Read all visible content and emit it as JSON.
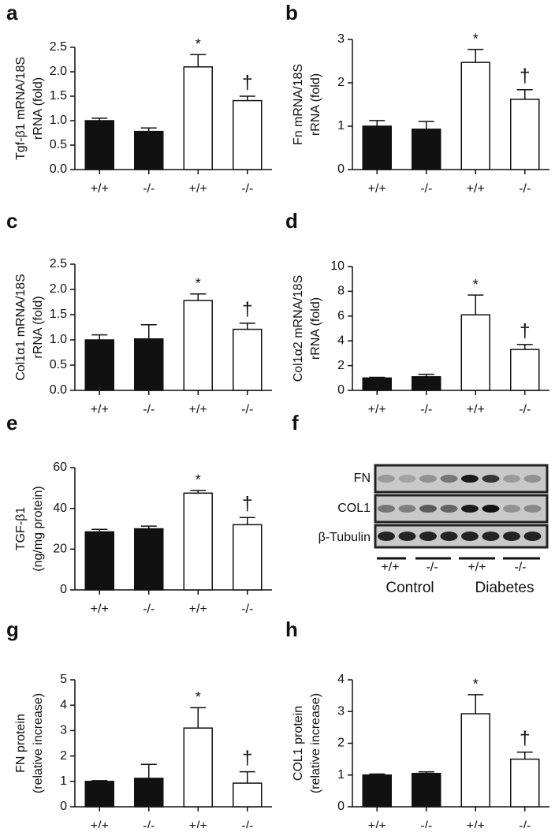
{
  "chart_data": [
    {
      "type": "bar",
      "panel": "a",
      "ylabel": [
        "Tgf-β1 mRNA/18S",
        "rRNA (fold)"
      ],
      "categories": [
        "+/+",
        "-/-",
        "+/+",
        "-/-"
      ],
      "values": [
        1.0,
        0.78,
        2.1,
        1.41
      ],
      "errors": [
        0.05,
        0.07,
        0.25,
        0.09
      ],
      "colors": [
        "#111111",
        "#111111",
        "#ffffff",
        "#ffffff"
      ],
      "bar_labels": [
        null,
        null,
        "*",
        "†"
      ],
      "ylim": [
        0,
        2.5
      ],
      "yticks": [
        {
          "value": 0,
          "label": "0.0"
        },
        0.5,
        {
          "value": 1,
          "label": "1.0"
        },
        1.5,
        {
          "value": 2,
          "label": "2.0"
        },
        2.5
      ]
    },
    {
      "type": "bar",
      "panel": "b",
      "ylabel": [
        "Fn mRNA/18S",
        "rRNA (fold)"
      ],
      "categories": [
        "+/+",
        "-/-",
        "+/+",
        "-/-"
      ],
      "values": [
        1.0,
        0.93,
        2.47,
        1.62
      ],
      "errors": [
        0.13,
        0.18,
        0.3,
        0.22
      ],
      "colors": [
        "#111111",
        "#111111",
        "#ffffff",
        "#ffffff"
      ],
      "bar_labels": [
        null,
        null,
        "*",
        "†"
      ],
      "ylim": [
        0,
        3
      ],
      "yticks": [
        0,
        1,
        2,
        3
      ]
    },
    {
      "type": "bar",
      "panel": "c",
      "ylabel": [
        "Col1α1 mRNA/18S",
        "rRNA (fold)"
      ],
      "categories": [
        "+/+",
        "-/-",
        "+/+",
        "-/-"
      ],
      "values": [
        1.0,
        1.02,
        1.78,
        1.21
      ],
      "errors": [
        0.1,
        0.28,
        0.13,
        0.12
      ],
      "colors": [
        "#111111",
        "#111111",
        "#ffffff",
        "#ffffff"
      ],
      "bar_labels": [
        null,
        null,
        "*",
        "†"
      ],
      "ylim": [
        0,
        2.5
      ],
      "yticks": [
        {
          "value": 0,
          "label": "0.0"
        },
        0.5,
        {
          "value": 1,
          "label": "1.0"
        },
        1.5,
        {
          "value": 2,
          "label": "2.0"
        },
        2.5
      ]
    },
    {
      "type": "bar",
      "panel": "d",
      "ylabel": [
        "Col1α2 mRNA/18S",
        "rRNA (fold)"
      ],
      "categories": [
        "+/+",
        "-/-",
        "+/+",
        "-/-"
      ],
      "values": [
        1.0,
        1.1,
        6.1,
        3.3
      ],
      "errors": [
        0.05,
        0.2,
        1.6,
        0.4
      ],
      "colors": [
        "#111111",
        "#111111",
        "#ffffff",
        "#ffffff"
      ],
      "bar_labels": [
        null,
        null,
        "*",
        "†"
      ],
      "ylim": [
        0,
        10
      ],
      "yticks": [
        0,
        2,
        4,
        6,
        8,
        10
      ]
    },
    {
      "type": "bar",
      "panel": "e",
      "ylabel": [
        "TGF-β1",
        "(ng/mg protein)"
      ],
      "categories": [
        "+/+",
        "-/-",
        "+/+",
        "-/-"
      ],
      "values": [
        28.5,
        30,
        47.5,
        32
      ],
      "errors": [
        1.2,
        1.3,
        1.3,
        3.5
      ],
      "colors": [
        "#111111",
        "#111111",
        "#ffffff",
        "#ffffff"
      ],
      "bar_labels": [
        null,
        null,
        "*",
        "†"
      ],
      "ylim": [
        0,
        60
      ],
      "yticks": [
        0,
        20,
        40,
        60
      ]
    },
    {
      "type": "bar",
      "panel": "g",
      "ylabel": [
        "FN protein",
        "(relative increase)"
      ],
      "categories": [
        "+/+",
        "-/-",
        "+/+",
        "-/-"
      ],
      "values": [
        1.0,
        1.12,
        3.1,
        0.93
      ],
      "errors": [
        0.03,
        0.55,
        0.8,
        0.45
      ],
      "colors": [
        "#111111",
        "#111111",
        "#ffffff",
        "#ffffff"
      ],
      "bar_labels": [
        null,
        null,
        "*",
        "†"
      ],
      "ylim": [
        0,
        5
      ],
      "yticks": [
        0,
        1,
        2,
        3,
        4,
        5
      ]
    },
    {
      "type": "bar",
      "panel": "h",
      "ylabel": [
        "COL1 protein",
        "(relative increase)"
      ],
      "categories": [
        "+/+",
        "-/-",
        "+/+",
        "-/-"
      ],
      "values": [
        1.0,
        1.05,
        2.93,
        1.5
      ],
      "errors": [
        0.03,
        0.05,
        0.6,
        0.22
      ],
      "colors": [
        "#111111",
        "#111111",
        "#ffffff",
        "#ffffff"
      ],
      "bar_labels": [
        null,
        null,
        "*",
        "†"
      ],
      "ylim": [
        0,
        4
      ],
      "yticks": [
        0,
        1,
        2,
        3,
        4
      ]
    }
  ],
  "blot": {
    "panel": "f",
    "rows": [
      "FN",
      "COL1",
      "β-Tubulin"
    ],
    "genotypes": [
      "+/+",
      "-/-",
      "+/+",
      "-/-"
    ],
    "groups": [
      "Control",
      "Diabetes"
    ]
  }
}
